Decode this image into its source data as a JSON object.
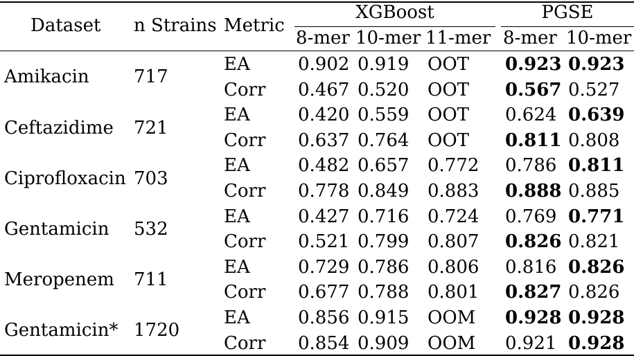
{
  "headers": {
    "dataset": "Dataset",
    "n_strains": "n Strains",
    "metric": "Metric",
    "group_xgboost": "XGBoost",
    "group_pgse": "PGSE",
    "sub": [
      "8-mer",
      "10-mer",
      "11-mer",
      "8-mer",
      "10-mer"
    ]
  },
  "rows": [
    {
      "dataset": "Amikacin",
      "n": "717",
      "metrics": [
        {
          "metric": "EA",
          "values": [
            "0.902",
            "0.919",
            "OOT",
            "0.923",
            "0.923"
          ],
          "bold": [
            false,
            false,
            false,
            true,
            true
          ]
        },
        {
          "metric": "Corr",
          "values": [
            "0.467",
            "0.520",
            "OOT",
            "0.567",
            "0.527"
          ],
          "bold": [
            false,
            false,
            false,
            true,
            false
          ]
        }
      ]
    },
    {
      "dataset": "Ceftazidime",
      "n": "721",
      "metrics": [
        {
          "metric": "EA",
          "values": [
            "0.420",
            "0.559",
            "OOT",
            "0.624",
            "0.639"
          ],
          "bold": [
            false,
            false,
            false,
            false,
            true
          ]
        },
        {
          "metric": "Corr",
          "values": [
            "0.637",
            "0.764",
            "OOT",
            "0.811",
            "0.808"
          ],
          "bold": [
            false,
            false,
            false,
            true,
            false
          ]
        }
      ]
    },
    {
      "dataset": "Ciprofloxacin",
      "n": "703",
      "metrics": [
        {
          "metric": "EA",
          "values": [
            "0.482",
            "0.657",
            "0.772",
            "0.786",
            "0.811"
          ],
          "bold": [
            false,
            false,
            false,
            false,
            true
          ]
        },
        {
          "metric": "Corr",
          "values": [
            "0.778",
            "0.849",
            "0.883",
            "0.888",
            "0.885"
          ],
          "bold": [
            false,
            false,
            false,
            true,
            false
          ]
        }
      ]
    },
    {
      "dataset": "Gentamicin",
      "n": "532",
      "metrics": [
        {
          "metric": "EA",
          "values": [
            "0.427",
            "0.716",
            "0.724",
            "0.769",
            "0.771"
          ],
          "bold": [
            false,
            false,
            false,
            false,
            true
          ]
        },
        {
          "metric": "Corr",
          "values": [
            "0.521",
            "0.799",
            "0.807",
            "0.826",
            "0.821"
          ],
          "bold": [
            false,
            false,
            false,
            true,
            false
          ]
        }
      ]
    },
    {
      "dataset": "Meropenem",
      "n": "711",
      "metrics": [
        {
          "metric": "EA",
          "values": [
            "0.729",
            "0.786",
            "0.806",
            "0.816",
            "0.826"
          ],
          "bold": [
            false,
            false,
            false,
            false,
            true
          ]
        },
        {
          "metric": "Corr",
          "values": [
            "0.677",
            "0.788",
            "0.801",
            "0.827",
            "0.826"
          ],
          "bold": [
            false,
            false,
            false,
            true,
            false
          ]
        }
      ]
    },
    {
      "dataset": "Gentamicin*",
      "n": "1720",
      "metrics": [
        {
          "metric": "EA",
          "values": [
            "0.856",
            "0.915",
            "OOM",
            "0.928",
            "0.928"
          ],
          "bold": [
            false,
            false,
            false,
            true,
            true
          ]
        },
        {
          "metric": "Corr",
          "values": [
            "0.854",
            "0.909",
            "OOM",
            "0.921",
            "0.928"
          ],
          "bold": [
            false,
            false,
            false,
            false,
            true
          ]
        }
      ]
    }
  ]
}
